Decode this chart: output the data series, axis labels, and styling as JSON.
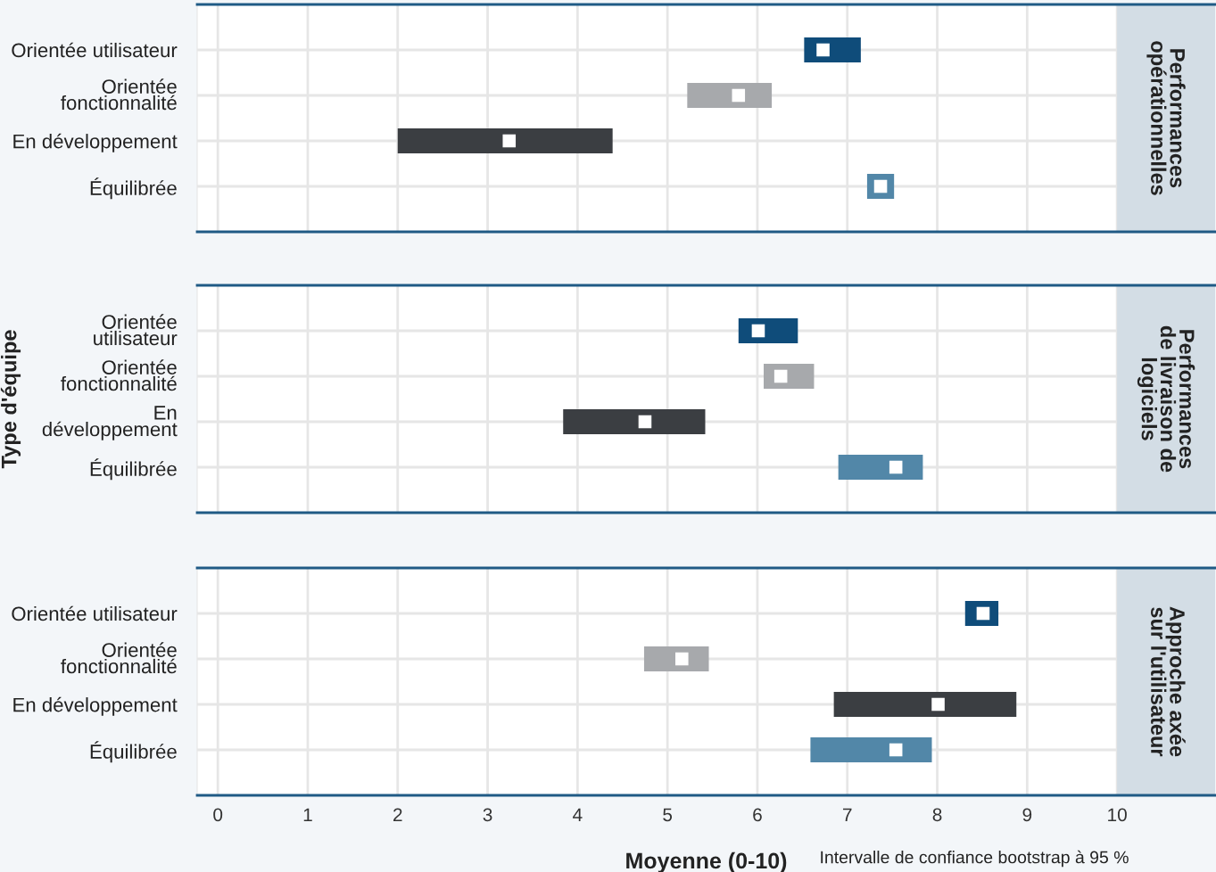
{
  "chart_data": [
    {
      "type": "bar",
      "orientation": "horizontal",
      "title": "Performances\nopérationnelles",
      "categories": [
        "Orientée utilisateur",
        "Orientée\nfonctionnalité",
        "En développement",
        "Équilibrée"
      ],
      "xlim": [
        -0.23,
        11.09
      ],
      "xticks": [
        0,
        1,
        2,
        3,
        4,
        5,
        6,
        7,
        8,
        9,
        10
      ],
      "tick_labels": "y",
      "grid": true,
      "series": [
        {
          "type": "bar",
          "colors": [
            "#0f4c7a",
            "#a7a9ac",
            "#3b3e42",
            "#5287a8"
          ],
          "base": [
            6.52,
            5.22,
            2.0,
            7.22
          ],
          "values": [
            0.63,
            0.94,
            2.39,
            0.3
          ]
        },
        {
          "type": "scatter",
          "color": "#ffffff",
          "marker": "square",
          "values": [
            6.73,
            5.79,
            3.24,
            7.37
          ]
        }
      ]
    },
    {
      "type": "bar",
      "orientation": "horizontal",
      "title": "Performances\nde livraison de\nlogiciels",
      "ylabel": "Type d'équipe",
      "categories": [
        "Orientée\nutilisateur",
        "Orientée\nfonctionnalité",
        "En\ndéveloppement",
        "Équilibrée"
      ],
      "xlim": [
        -0.23,
        11.09
      ],
      "xticks": [
        0,
        1,
        2,
        3,
        4,
        5,
        6,
        7,
        8,
        9,
        10
      ],
      "tick_labels": "y",
      "grid": true,
      "series": [
        {
          "type": "bar",
          "colors": [
            "#0f4c7a",
            "#a7a9ac",
            "#3b3e42",
            "#5287a8"
          ],
          "base": [
            5.79,
            6.07,
            3.84,
            6.9
          ],
          "values": [
            0.66,
            0.56,
            1.58,
            0.94
          ]
        },
        {
          "type": "scatter",
          "color": "#ffffff",
          "marker": "square",
          "values": [
            6.01,
            6.26,
            4.75,
            7.54
          ]
        }
      ]
    },
    {
      "type": "bar",
      "orientation": "horizontal",
      "title": "Approche axée\nsur l'utilisateur",
      "xlabel": "Moyenne (0-10)",
      "annotations": [
        "Intervalle de confiance bootstrap à 95 %"
      ],
      "categories": [
        "Orientée utilisateur",
        "Orientée\nfonctionnalité",
        "En développement",
        "Équilibrée"
      ],
      "xlim": [
        -0.23,
        11.09
      ],
      "xticks": [
        0,
        1,
        2,
        3,
        4,
        5,
        6,
        7,
        8,
        9,
        10
      ],
      "grid": true,
      "series": [
        {
          "type": "bar",
          "colors": [
            "#0f4c7a",
            "#a7a9ac",
            "#3b3e42",
            "#5287a8"
          ],
          "base": [
            8.31,
            4.74,
            6.85,
            6.59
          ],
          "values": [
            0.37,
            0.72,
            2.03,
            1.35
          ]
        },
        {
          "type": "scatter",
          "color": "#ffffff",
          "marker": "square",
          "values": [
            8.51,
            5.16,
            8.01,
            7.54
          ]
        }
      ]
    }
  ]
}
